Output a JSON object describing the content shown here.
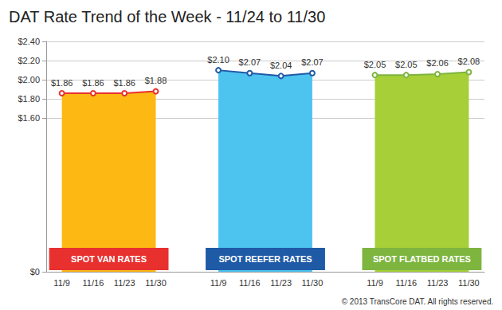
{
  "chart_data": {
    "type": "area",
    "title": "DAT Rate Trend of the Week - 11/24 to 11/30",
    "annotations": [
      "© 2013 TransCore DAT. All rights reserved."
    ],
    "categories": [
      "11/9",
      "11/16",
      "11/23",
      "11/30",
      null,
      "11/9",
      "11/16",
      "11/23",
      "11/30",
      null,
      "11/9",
      "11/16",
      "11/23",
      "11/30"
    ],
    "series": [
      {
        "name": "SPOT VAN RATES",
        "color": "#e8312f",
        "marker": "circle",
        "values": [
          1.86,
          1.86,
          1.86,
          1.88,
          null,
          null,
          null,
          null,
          null,
          null,
          null,
          null,
          null,
          null
        ],
        "value_labels": [
          "$1.86",
          "$1.86",
          "$1.86",
          "$1.88",
          null,
          null,
          null,
          null,
          null,
          null,
          null,
          null,
          null,
          null
        ]
      },
      {
        "name": "SPOT REEFER RATES",
        "color": "#1f5aa6",
        "marker": "circle",
        "values": [
          null,
          null,
          null,
          null,
          null,
          2.1,
          2.07,
          2.04,
          2.07,
          null,
          null,
          null,
          null,
          null
        ],
        "value_labels": [
          null,
          null,
          null,
          null,
          null,
          "$2.10",
          "$2.07",
          "$2.04",
          "$2.07",
          null,
          null,
          null,
          null,
          null
        ]
      },
      {
        "name": "SPOT FLATBED RATES",
        "color": "#7db53f",
        "marker": "circle",
        "values": [
          null,
          null,
          null,
          null,
          null,
          null,
          null,
          null,
          null,
          null,
          2.05,
          2.05,
          2.06,
          2.08
        ],
        "value_labels": [
          null,
          null,
          null,
          null,
          null,
          null,
          null,
          null,
          null,
          null,
          "$2.05",
          "$2.05",
          "$2.06",
          "$2.08"
        ]
      }
    ],
    "ylim": [
      0,
      2.4
    ],
    "yticks": [
      {
        "value": 0,
        "label": "$0"
      },
      {
        "value": 1.6,
        "label": "$1.60"
      },
      {
        "value": 1.8,
        "label": "$1.80"
      },
      {
        "value": 2.0,
        "label": "$2.00"
      },
      {
        "value": 2.2,
        "label": "$2.20"
      },
      {
        "value": 2.4,
        "label": "$2.40"
      }
    ],
    "grid": true,
    "data_labels": true
  }
}
